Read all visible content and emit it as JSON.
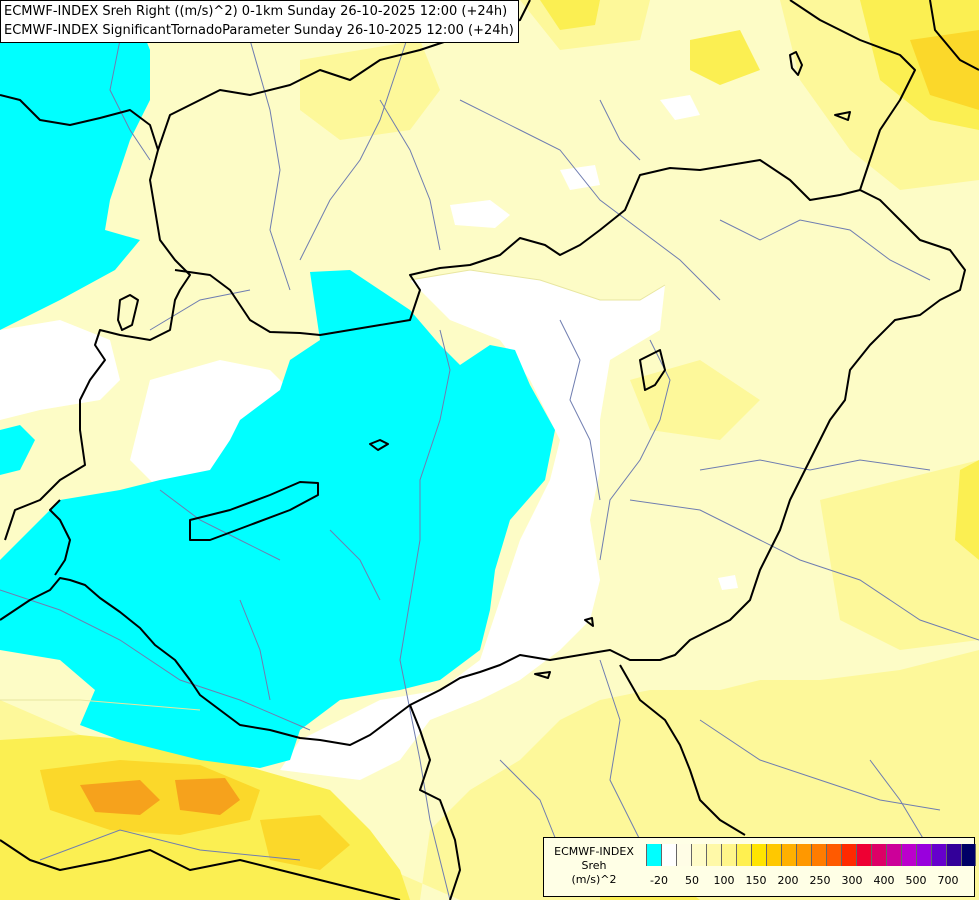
{
  "title": {
    "line1": "ECMWF-INDEX Sreh Right ((m/s)^2) 0-1km Sunday 26-10-2025 12:00 (+24h)",
    "line2": "ECMWF-INDEX SignificantTornadoParameter Sunday 26-10-2025 12:00 (+24h)"
  },
  "legend": {
    "line1": "ECMWF-INDEX",
    "line2": "Sreh",
    "line3": "(m/s)^2",
    "tick_labels": [
      "-20",
      "50",
      "100",
      "150",
      "200",
      "250",
      "300",
      "400",
      "500",
      "700"
    ],
    "colors": [
      "#00ffff",
      "#ffffff",
      "#fffde6",
      "#fffcc8",
      "#fff9a8",
      "#fff68a",
      "#fff050",
      "#ffe400",
      "#ffc800",
      "#ffb000",
      "#ff9800",
      "#ff7c00",
      "#ff5a00",
      "#ff2a00",
      "#ee0033",
      "#dd0066",
      "#cc0099",
      "#bb00cc",
      "#9900dd",
      "#6600cc",
      "#330099",
      "#000066"
    ]
  },
  "map_colors": {
    "cyan": "#00ffff",
    "white": "#ffffff",
    "pale": "#fdfcc6",
    "light_yellow": "#fdf89a",
    "yellow": "#fbef52",
    "gold": "#fbd82a",
    "orange": "#f6a21c",
    "border": "#000000",
    "river": "#6f7db0"
  }
}
